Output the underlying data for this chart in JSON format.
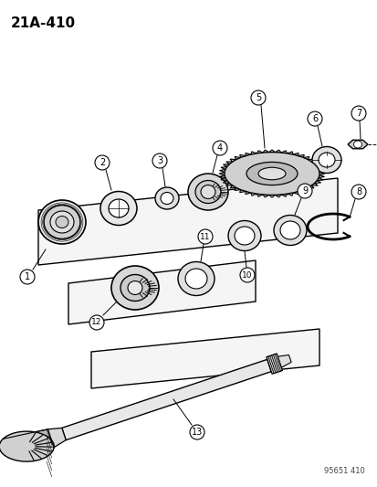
{
  "title": "21A-410",
  "watermark": "95651 410",
  "background_color": "#ffffff",
  "line_color": "#000000",
  "fig_width": 4.14,
  "fig_height": 5.33,
  "dpi": 100
}
